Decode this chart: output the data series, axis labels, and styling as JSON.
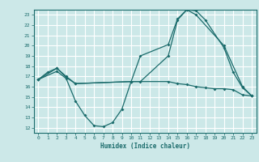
{
  "xlabel": "Humidex (Indice chaleur)",
  "bg_color": "#cce8e8",
  "line_color": "#1a6b6b",
  "grid_color": "#ffffff",
  "xlim": [
    -0.5,
    23.5
  ],
  "ylim": [
    11.5,
    23.5
  ],
  "xticks": [
    0,
    1,
    2,
    3,
    4,
    5,
    6,
    7,
    8,
    9,
    10,
    11,
    12,
    13,
    14,
    15,
    16,
    17,
    18,
    19,
    20,
    21,
    22,
    23
  ],
  "yticks": [
    12,
    13,
    14,
    15,
    16,
    17,
    18,
    19,
    20,
    21,
    22,
    23
  ],
  "line1_x": [
    0,
    1,
    2,
    3,
    4,
    10,
    11,
    14,
    15,
    16,
    17,
    18,
    20,
    21,
    22,
    23
  ],
  "line1_y": [
    16.7,
    17.4,
    17.8,
    17.0,
    16.3,
    16.5,
    16.5,
    19.0,
    22.5,
    23.5,
    23.4,
    22.5,
    19.8,
    17.4,
    15.9,
    15.1
  ],
  "line2_x": [
    0,
    2,
    3,
    4,
    5,
    6,
    7,
    8,
    9,
    10,
    11,
    14,
    15,
    16,
    17,
    20,
    22,
    23
  ],
  "line2_y": [
    16.7,
    17.5,
    16.8,
    14.6,
    13.2,
    12.2,
    12.1,
    12.5,
    13.8,
    16.5,
    19.0,
    20.1,
    22.6,
    23.5,
    23.0,
    20.0,
    16.0,
    15.1
  ],
  "line3_x": [
    0,
    2,
    3,
    4,
    10,
    14,
    15,
    16,
    17,
    18,
    19,
    20,
    21,
    22,
    23
  ],
  "line3_y": [
    16.7,
    17.8,
    16.9,
    16.3,
    16.5,
    16.5,
    16.3,
    16.2,
    16.0,
    15.9,
    15.8,
    15.8,
    15.7,
    15.2,
    15.1
  ]
}
